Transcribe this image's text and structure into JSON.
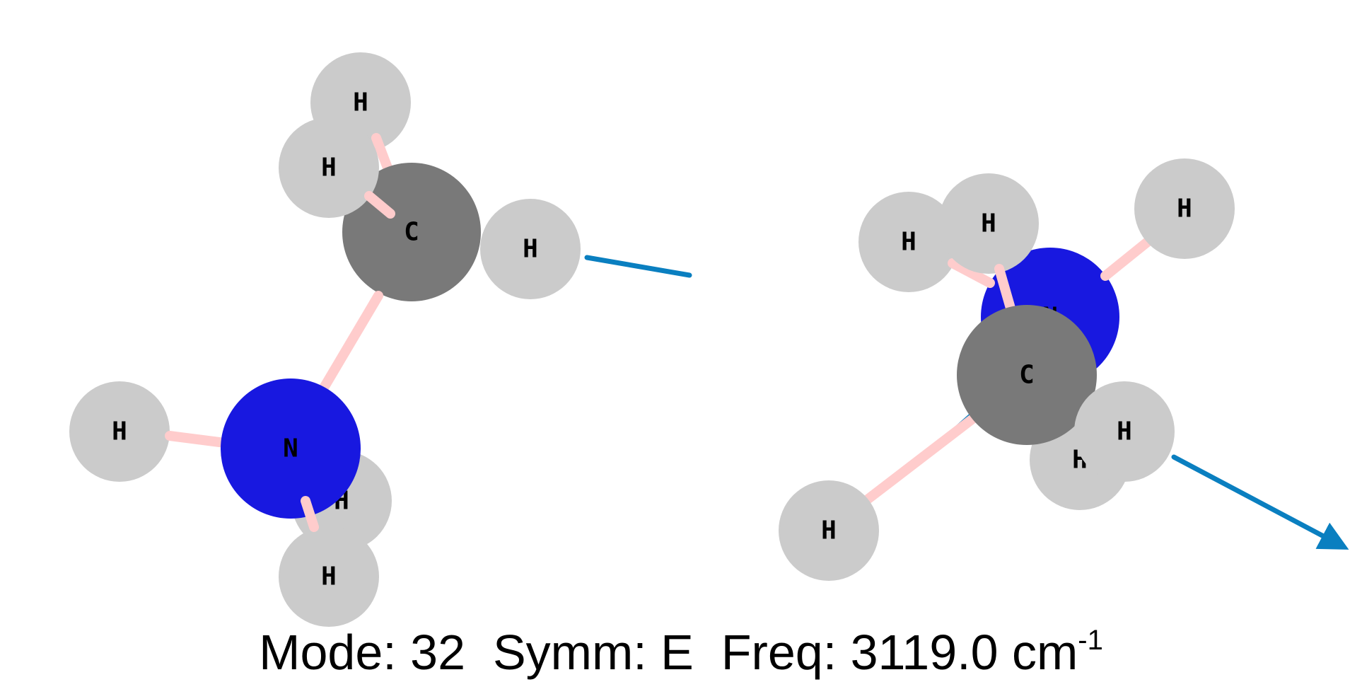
{
  "colors": {
    "hydrogen": "#cbcbcb",
    "carbon": "#797979",
    "nitrogen": "#1818e0",
    "bond": "#ffcccc",
    "displacement_arrow": "#0a7fc0",
    "background": "#ffffff"
  },
  "atom_symbols": {
    "H": "H",
    "C": "C",
    "N": "N"
  },
  "views": [
    {
      "name": "left-view",
      "atoms": [
        "H",
        "H",
        "C",
        "H",
        "H",
        "N",
        "H",
        "H"
      ]
    },
    {
      "name": "right-view",
      "atoms": [
        "H",
        "H",
        "H",
        "N",
        "C",
        "H",
        "H",
        "H"
      ]
    }
  ],
  "caption": {
    "mode_label": "Mode:",
    "mode_value": "32",
    "symm_label": "Symm:",
    "symm_value": "E",
    "freq_label": "Freq:",
    "freq_value": "3119.0",
    "freq_unit": "cm",
    "freq_unit_exponent": "-1"
  }
}
